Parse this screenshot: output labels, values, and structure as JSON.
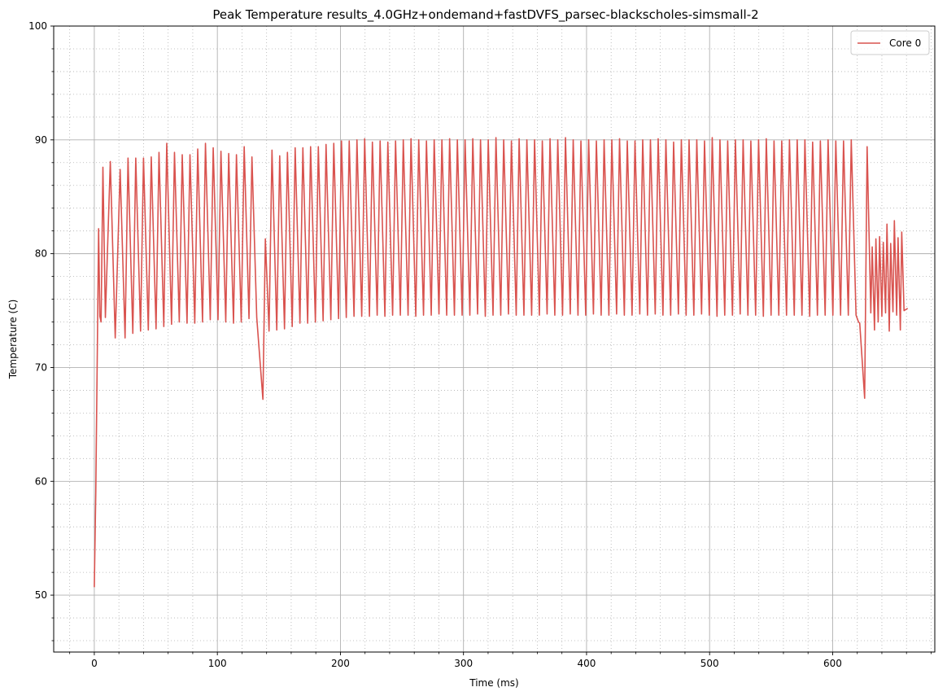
{
  "chart_data": {
    "type": "line",
    "title": "Peak Temperature results_4.0GHz+ondemand+fastDVFS_parsec-blackscholes-simsmall-2",
    "xlabel": "Time (ms)",
    "ylabel": "Temperature (C)",
    "xlim": [
      -33,
      683
    ],
    "ylim": [
      45,
      100
    ],
    "xticks": [
      0,
      100,
      200,
      300,
      400,
      500,
      600
    ],
    "yticks": [
      50,
      60,
      70,
      80,
      90,
      100
    ],
    "x_minor_step": 20,
    "y_minor_step": 2,
    "grid": true,
    "legend_position": "top-right",
    "series": [
      {
        "name": "Core 0",
        "color": "#d9534f",
        "anchors": [
          {
            "x": 0,
            "y": 50.7
          },
          {
            "x": 1.2,
            "y": 59
          },
          {
            "x": 2.5,
            "y": 72
          },
          {
            "x": 3.5,
            "y": 82.2
          },
          {
            "x": 4.5,
            "y": 74.5
          },
          {
            "x": 5.5,
            "y": 74.0
          },
          {
            "x": 7.0,
            "y": 87.6
          },
          {
            "x": 9.0,
            "y": 74.4
          },
          {
            "x": 13,
            "y": 88.1
          },
          {
            "x": 17,
            "y": 72.6
          },
          {
            "x": 21,
            "y": 87.4
          },
          {
            "x": 25,
            "y": 72.6
          },
          {
            "x": 137,
            "y": 67.2
          },
          {
            "x": 139,
            "y": 81.3
          },
          {
            "x": 142,
            "y": 73.2
          },
          {
            "x": 620,
            "y": 74.3
          },
          {
            "x": 621,
            "y": 74.0
          },
          {
            "x": 622,
            "y": 73.9
          },
          {
            "x": 626,
            "y": 67.3
          },
          {
            "x": 628,
            "y": 89.4
          },
          {
            "x": 631,
            "y": 74.8
          },
          {
            "x": 661,
            "y": 75.2
          }
        ],
        "peaks_a": [
          88.4,
          88.4,
          88.4,
          88.5,
          88.9,
          89.7,
          88.9,
          88.7,
          88.7,
          89.2,
          89.7,
          89.3,
          89.0,
          88.8,
          88.7,
          89.4,
          88.5
        ],
        "troughs_a": [
          73.0,
          73.2,
          73.3,
          73.4,
          73.6,
          73.8,
          74.0,
          73.9,
          73.9,
          74.0,
          74.2,
          74.2,
          74.0,
          73.9,
          74.0,
          74.3,
          74.4
        ],
        "peaks_b": [
          89.1,
          88.6,
          88.9,
          89.3,
          89.3,
          89.4,
          89.4,
          89.6,
          89.7,
          89.9,
          89.9,
          90.0,
          90.1,
          89.8,
          89.9,
          89.8,
          89.9,
          90.0,
          90.1,
          90.0,
          89.9,
          90.0,
          90.0,
          90.1,
          90.0,
          90.0,
          90.1,
          90.0,
          90.0,
          90.2,
          90.0,
          89.9,
          90.1,
          90.0,
          90.0,
          89.9,
          90.1,
          90.0,
          90.2,
          90.0,
          89.9,
          90.0,
          89.9,
          90.0,
          90.0,
          90.1,
          89.9,
          89.9,
          90.0,
          90.0,
          90.1,
          90.0,
          89.8,
          90.0,
          90.0,
          90.0,
          89.9,
          90.2,
          90.0,
          89.9,
          90.0,
          90.0,
          89.9,
          90.0,
          90.1,
          89.9,
          89.9,
          90.0,
          90.0,
          90.0,
          89.8,
          89.9,
          90.0,
          89.9,
          89.9,
          90.0
        ],
        "troughs_b": [
          73.3,
          73.4,
          73.6,
          73.9,
          73.9,
          74.0,
          74.1,
          74.2,
          74.3,
          74.4,
          74.5,
          74.5,
          74.5,
          74.6,
          74.5,
          74.6,
          74.6,
          74.6,
          74.5,
          74.6,
          74.6,
          74.7,
          74.6,
          74.6,
          74.6,
          74.6,
          74.7,
          74.5,
          74.6,
          74.6,
          74.7,
          74.6,
          74.6,
          74.6,
          74.6,
          74.7,
          74.6,
          74.6,
          74.7,
          74.6,
          74.6,
          74.7,
          74.6,
          74.6,
          74.7,
          74.6,
          74.6,
          74.7,
          74.6,
          74.7,
          74.6,
          74.6,
          74.7,
          74.6,
          74.6,
          74.7,
          74.6,
          74.5,
          74.6,
          74.6,
          74.7,
          74.6,
          74.6,
          74.5,
          74.6,
          74.6,
          74.6,
          74.6,
          74.6,
          74.5,
          74.6,
          74.6,
          74.6,
          74.6,
          74.6,
          74.6
        ],
        "peaks_c": [
          80.6,
          81.3,
          81.5,
          81.0,
          82.6,
          80.9,
          82.9,
          81.4,
          81.9
        ],
        "troughs_c": [
          73.3,
          74.0,
          74.5,
          74.8,
          73.2,
          74.9,
          74.6,
          73.3,
          75.0
        ]
      }
    ]
  }
}
